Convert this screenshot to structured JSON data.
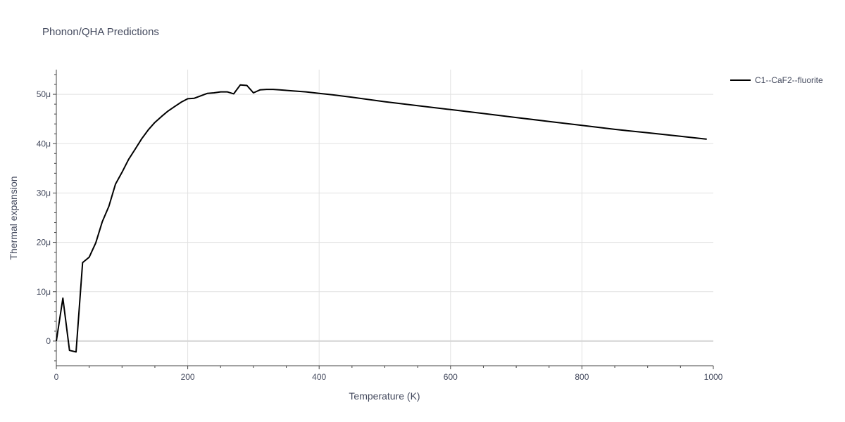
{
  "chart_data": {
    "type": "line",
    "title": "Phonon/QHA Predictions",
    "xlabel": "Temperature (K)",
    "ylabel": "Thermal expansion",
    "xlim": [
      0,
      1000
    ],
    "ylim": [
      -5e-06,
      5.5e-05
    ],
    "x_ticks": [
      0,
      200,
      400,
      600,
      800,
      1000
    ],
    "x_tick_labels": [
      "0",
      "200",
      "400",
      "600",
      "800",
      "1000"
    ],
    "y_ticks": [
      0,
      1e-05,
      2e-05,
      3e-05,
      4e-05,
      5e-05
    ],
    "y_tick_labels": [
      "0",
      "10μ",
      "20μ",
      "30μ",
      "40μ",
      "50μ"
    ],
    "grid": true,
    "legend_position": "top-right",
    "series": [
      {
        "name": "C1--CaF2--fluorite",
        "color": "#000000",
        "x": [
          0,
          10,
          20,
          30,
          40,
          50,
          60,
          70,
          80,
          90,
          100,
          110,
          120,
          130,
          140,
          150,
          160,
          170,
          180,
          190,
          200,
          210,
          220,
          230,
          240,
          250,
          260,
          270,
          280,
          290,
          300,
          310,
          320,
          330,
          340,
          360,
          380,
          400,
          420,
          450,
          500,
          550,
          600,
          650,
          700,
          750,
          800,
          850,
          900,
          950,
          990
        ],
        "y": [
          0,
          8.7e-06,
          -1.9e-06,
          -2.2e-06,
          1.59e-05,
          1.7e-05,
          1.99e-05,
          2.42e-05,
          2.73e-05,
          3.18e-05,
          3.42e-05,
          3.68e-05,
          3.89e-05,
          4.1e-05,
          4.28e-05,
          4.43e-05,
          4.55e-05,
          4.66e-05,
          4.75e-05,
          4.84e-05,
          4.91e-05,
          4.92e-05,
          4.97e-05,
          5.02e-05,
          5.03e-05,
          5.05e-05,
          5.05e-05,
          5.01e-05,
          5.19e-05,
          5.18e-05,
          5.03e-05,
          5.09e-05,
          5.1e-05,
          5.1e-05,
          5.09e-05,
          5.07e-05,
          5.05e-05,
          5.02e-05,
          4.99e-05,
          4.94e-05,
          4.85e-05,
          4.77e-05,
          4.69e-05,
          4.61e-05,
          4.53e-05,
          4.45e-05,
          4.37e-05,
          4.29e-05,
          4.22e-05,
          4.15e-05,
          4.09e-05
        ]
      }
    ]
  }
}
